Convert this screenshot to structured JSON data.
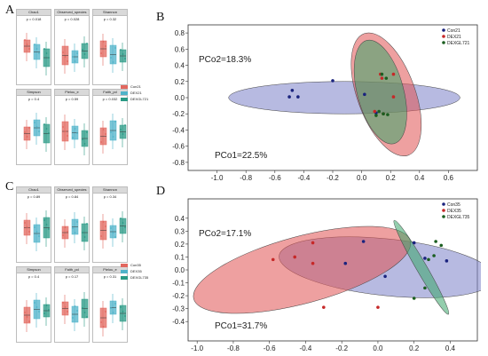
{
  "figure": {
    "panel_labels": [
      "A",
      "B",
      "C",
      "D"
    ]
  },
  "panel_A": {
    "facets": [
      {
        "title": "Chao1",
        "p": "p = 0.018"
      },
      {
        "title": "Observed_species",
        "p": "p = 0.028"
      },
      {
        "title": "Shannon",
        "p": "p = 0.32"
      },
      {
        "title": "Simpson",
        "p": "p = 0.4"
      },
      {
        "title": "Pielou_e",
        "p": "p = 0.59"
      },
      {
        "title": "Faith_pd",
        "p": "p = 0.032"
      }
    ],
    "legend": [
      "Con21",
      "DEX21",
      "DEXGL721"
    ]
  },
  "panel_C": {
    "facets": [
      {
        "title": "Chao1",
        "p": "p = 0.89"
      },
      {
        "title": "Observed_species",
        "p": "p = 0.84"
      },
      {
        "title": "Shannon",
        "p": "p = 0.34"
      },
      {
        "title": "Simpson",
        "p": "p = 0.4"
      },
      {
        "title": "Faith_pd",
        "p": "p = 0.17"
      },
      {
        "title": "Pielou_e",
        "p": "p = 0.31"
      }
    ],
    "legend": [
      "Con35",
      "DEX35",
      "DEXGL735"
    ]
  },
  "colors": {
    "con": "#e2675e",
    "dex": "#4fb3c9",
    "dexgl": "#2a9a85",
    "pt_con": "#1a237e",
    "pt_dex": "#c62828",
    "pt_dexgl": "#1b5e20",
    "ell_con": "#7b82c8",
    "ell_dex": "#e05252",
    "ell_dexgl": "#3aa66a"
  },
  "chart_data": [
    {
      "type": "scatter",
      "title": "",
      "annotations": [
        "PCo2=18.3%",
        "PCo1=22.5%"
      ],
      "xlim": [
        -1.2,
        0.8
      ],
      "ylim": [
        -0.9,
        0.9
      ],
      "xticks": [
        "-1.0",
        "-0.8",
        "-0.6",
        "-0.4",
        "-0.2",
        "0.0",
        "0.2",
        "0.4",
        "0.6"
      ],
      "yticks": [
        "0.8",
        "0.6",
        "0.4",
        "0.2",
        "0.0",
        "-0.2",
        "-0.4",
        "-0.6",
        "-0.8"
      ],
      "legend": [
        "Con21",
        "DEX21",
        "DEXGL721"
      ],
      "series": [
        {
          "name": "Con21",
          "points": [
            [
              -0.48,
              0.09
            ],
            [
              -0.5,
              0.01
            ],
            [
              -0.44,
              0.01
            ],
            [
              -0.2,
              0.21
            ],
            [
              0.02,
              0.04
            ],
            [
              0.1,
              -0.19
            ]
          ]
        },
        {
          "name": "DEX21",
          "points": [
            [
              0.13,
              0.29
            ],
            [
              0.22,
              0.29
            ],
            [
              0.14,
              0.24
            ],
            [
              0.22,
              0.01
            ],
            [
              0.15,
              -0.2
            ],
            [
              0.09,
              -0.17
            ]
          ]
        },
        {
          "name": "DEXGL721",
          "points": [
            [
              0.14,
              0.29
            ],
            [
              0.17,
              0.24
            ],
            [
              0.12,
              -0.17
            ],
            [
              0.15,
              -0.2
            ],
            [
              0.1,
              -0.22
            ],
            [
              0.18,
              -0.21
            ]
          ]
        }
      ],
      "ellipses": [
        {
          "name": "Con21",
          "cx": -0.12,
          "cy": 0.0,
          "rx": 0.8,
          "ry": 0.2,
          "angle": 0
        },
        {
          "name": "DEX21",
          "cx": 0.17,
          "cy": 0.04,
          "rx": 0.2,
          "ry": 0.8,
          "angle": -20
        },
        {
          "name": "DEXGL721",
          "cx": 0.13,
          "cy": 0.07,
          "rx": 0.16,
          "ry": 0.66,
          "angle": -15
        }
      ]
    },
    {
      "type": "scatter",
      "title": "",
      "annotations": [
        "PCo2=17.1%",
        "PCo1=31.7%"
      ],
      "xlim": [
        -1.05,
        0.55
      ],
      "ylim": [
        -0.55,
        0.55
      ],
      "xticks": [
        "-1.0",
        "-0.8",
        "-0.6",
        "-0.4",
        "-0.2",
        "0.0",
        "0.2",
        "0.4"
      ],
      "yticks": [
        "0.4",
        "0.3",
        "0.2",
        "0.1",
        "0.0",
        "-0.1",
        "-0.2",
        "-0.3",
        "-0.4"
      ],
      "legend": [
        "Con35",
        "DEX35",
        "DEXGL735"
      ],
      "series": [
        {
          "name": "Con35",
          "points": [
            [
              0.2,
              0.21
            ],
            [
              -0.08,
              0.22
            ],
            [
              0.26,
              0.09
            ],
            [
              -0.18,
              0.05
            ],
            [
              0.04,
              -0.05
            ],
            [
              0.38,
              0.07
            ]
          ]
        },
        {
          "name": "DEX35",
          "points": [
            [
              -0.58,
              0.08
            ],
            [
              -0.46,
              0.1
            ],
            [
              -0.36,
              0.21
            ],
            [
              -0.36,
              0.05
            ],
            [
              -0.3,
              -0.29
            ],
            [
              0.0,
              -0.29
            ]
          ]
        },
        {
          "name": "DEXGL735",
          "points": [
            [
              0.32,
              0.22
            ],
            [
              0.35,
              0.19
            ],
            [
              0.28,
              0.08
            ],
            [
              0.26,
              -0.14
            ],
            [
              0.2,
              -0.22
            ],
            [
              0.31,
              0.11
            ]
          ]
        }
      ],
      "ellipses": [
        {
          "name": "Con35",
          "cx": 0.05,
          "cy": 0.02,
          "rx": 0.6,
          "ry": 0.22,
          "angle": 6
        },
        {
          "name": "DEX35",
          "cx": -0.42,
          "cy": 0.0,
          "rx": 0.62,
          "ry": 0.26,
          "angle": -15
        },
        {
          "name": "DEXGL735",
          "cx": 0.24,
          "cy": 0.02,
          "rx": 0.3,
          "ry": 0.04,
          "angle": 60
        }
      ]
    }
  ]
}
